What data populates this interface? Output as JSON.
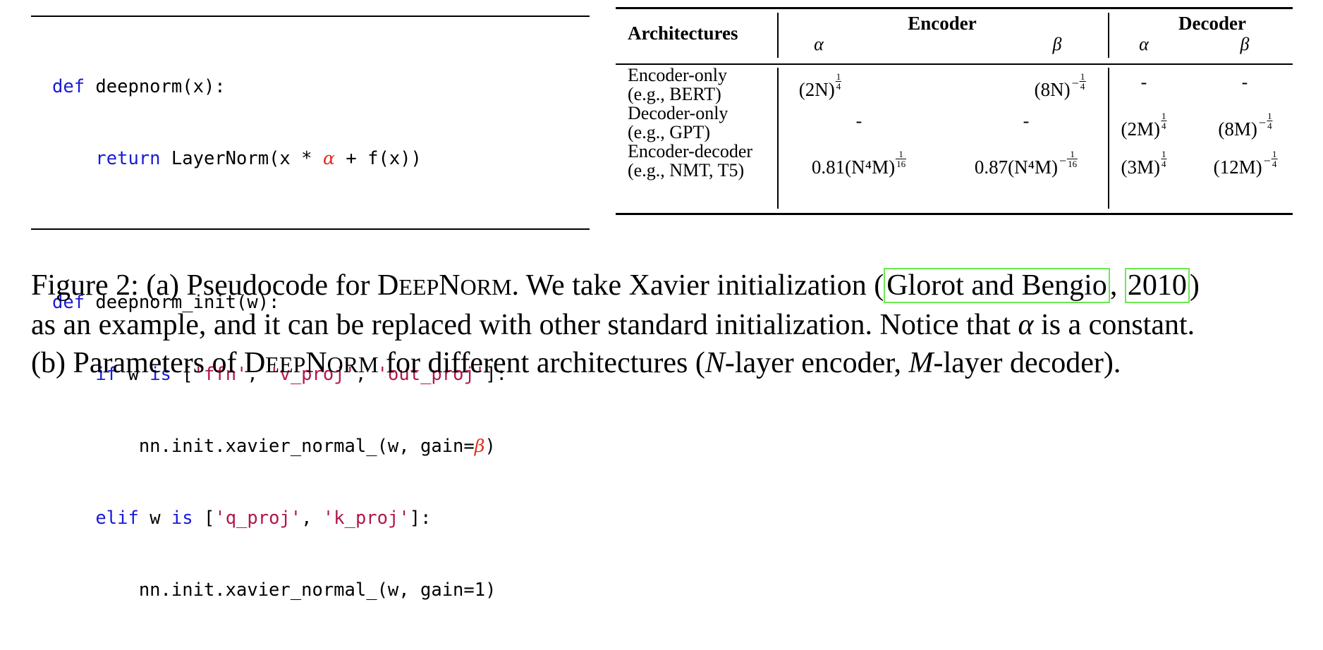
{
  "code": {
    "line1": {
      "kw": "def",
      "rest": " deepnorm(x):"
    },
    "line2": {
      "kw": "return",
      "pre": " LayerNorm(x * ",
      "greek": "α",
      "post": " + f(x))"
    },
    "line3": {
      "kw": "def",
      "rest": " deepnorm_init(w):"
    },
    "line4": {
      "kw1": "if",
      "mid1": " w ",
      "kw2": "is",
      "mid2": " [",
      "s1": "'ffn'",
      "c1": ", ",
      "s2": "'v_proj'",
      "c2": ", ",
      "s3": "'out_proj'",
      "end": "]:"
    },
    "line5": {
      "pre": "nn.init.xavier_normal_(w, gain=",
      "greek": "β",
      "post": ")"
    },
    "line6": {
      "kw1": "elif",
      "mid1": " w ",
      "kw2": "is",
      "mid2": " [",
      "s1": "'q_proj'",
      "c1": ", ",
      "s2": "'k_proj'",
      "end": "]:"
    },
    "line7": {
      "text": "nn.init.xavier_normal_(w, gain=1)"
    }
  },
  "table": {
    "col_arch": "Architectures",
    "group_encoder": "Encoder",
    "group_decoder": "Decoder",
    "sub_alpha": "α",
    "sub_beta": "β",
    "rows": [
      {
        "name": "Encoder-only",
        "example": "(e.g., BERT)",
        "enc_alpha": {
          "base": "(2N)",
          "num": "1",
          "den": "4",
          "neg": false
        },
        "enc_beta": {
          "base": "(8N)",
          "num": "1",
          "den": "4",
          "neg": true
        },
        "dec_alpha": "-",
        "dec_beta": "-"
      },
      {
        "name": "Decoder-only",
        "example": "(e.g., GPT)",
        "enc_alpha": "-",
        "enc_beta": "-",
        "dec_alpha": {
          "base": "(2M)",
          "num": "1",
          "den": "4",
          "neg": false
        },
        "dec_beta": {
          "base": "(8M)",
          "num": "1",
          "den": "4",
          "neg": true
        }
      },
      {
        "name": "Encoder-decoder",
        "example": "(e.g., NMT, T5)",
        "enc_alpha": {
          "coef": "0.81",
          "base": "(N⁴M)",
          "num": "1",
          "den": "16",
          "neg": false
        },
        "enc_beta": {
          "coef": "0.87",
          "base": "(N⁴M)",
          "num": "1",
          "den": "16",
          "neg": true
        },
        "dec_alpha": {
          "base": "(3M)",
          "num": "1",
          "den": "4",
          "neg": false
        },
        "dec_beta": {
          "base": "(12M)",
          "num": "1",
          "den": "4",
          "neg": true
        }
      }
    ]
  },
  "caption": {
    "l1_a": "Figure 2: (a) Pseudocode for ",
    "deepnorm_D": "D",
    "deepnorm_eep": "EEP",
    "deepnorm_N": "N",
    "deepnorm_orm": "ORM",
    "l1_b": ". We take Xavier initialization (",
    "cite_author": "Glorot and Bengio",
    "cite_sep": ", ",
    "cite_year": "2010",
    "l1_c": ")",
    "l2_a": "as an example, and it can be replaced with other standard initialization. Notice that ",
    "l2_alpha": "α",
    "l2_b": " is a constant.",
    "l3_a": "(b) Parameters of ",
    "l3_b": " for different architectures (",
    "l3_N": "N",
    "l3_c": "-layer encoder, ",
    "l3_M": "M",
    "l3_d": "-layer decoder)."
  }
}
